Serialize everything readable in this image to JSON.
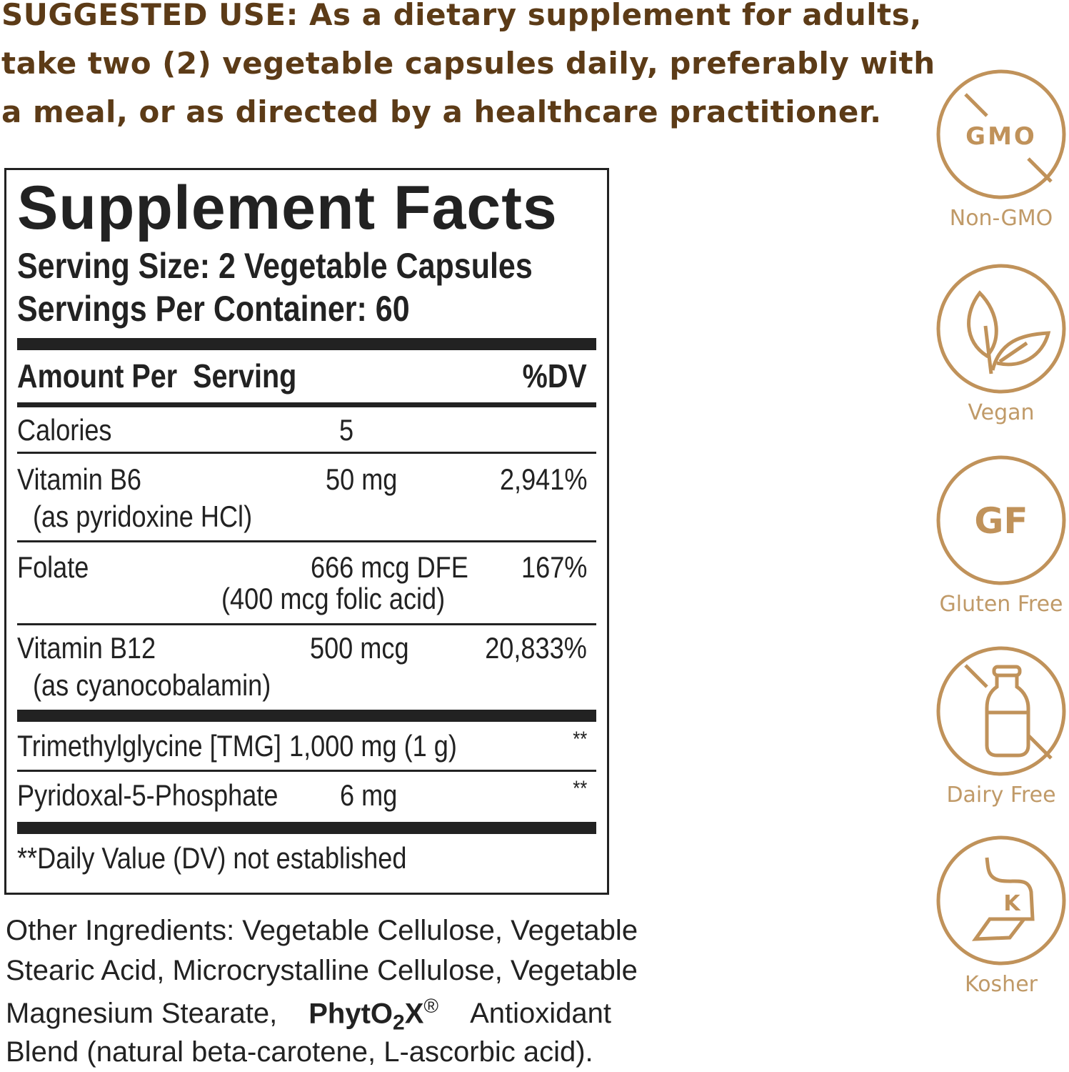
{
  "suggested_use": [
    "SUGGESTED USE: As a dietary supplement for adults,",
    "take two (2) vegetable capsules daily, preferably with",
    "a meal, or as directed by a healthcare practitioner."
  ],
  "facts": {
    "title": "Supplement Facts",
    "serving_size": "Serving Size: 2 Vegetable Capsules",
    "servings_per_container": "Servings Per Container: 60",
    "header_amount": "Amount Per  Serving",
    "header_dv": "%DV",
    "rows": [
      {
        "name": "Calories",
        "amount": "5",
        "dv": ""
      },
      {
        "name": "Vitamin B6",
        "sub": "(as pyridoxine HCl)",
        "amount": "50 mg",
        "dv": "2,941%"
      },
      {
        "name": "Folate",
        "amount": "666 mcg DFE",
        "amount_sub": "(400 mcg folic acid)",
        "dv": "167%"
      },
      {
        "name": "Vitamin B12",
        "sub": "(as cyanocobalamin)",
        "amount": "500 mcg",
        "dv": "20,833%"
      },
      {
        "name": "Trimethylglycine [TMG]",
        "amount": "1,000 mg (1 g)",
        "dv": "**"
      },
      {
        "name": "Pyridoxal-5-Phosphate",
        "amount": "6 mg",
        "dv": "**"
      }
    ],
    "footnote": "**Daily Value (DV) not established"
  },
  "other_ingredients": {
    "line1": "Other Ingredients: Vegetable Cellulose, Vegetable",
    "line2": "Stearic Acid, Microcrystalline Cellulose, Vegetable",
    "line3_a": "Magnesium Stearate,",
    "line3_brand": "PhytO",
    "line3_sub": "2",
    "line3_brand_end": "X",
    "line3_reg": "®",
    "line3_b": "Antioxidant",
    "line4": "Blend (natural beta-carotene, L-ascorbic acid)."
  },
  "badges": [
    {
      "icon": "no-gmo-icon",
      "glyph": "GMO",
      "label": "Non-GMO"
    },
    {
      "icon": "leaf-icon",
      "label": "Vegan"
    },
    {
      "icon": "gluten-free-icon",
      "glyph": "GF",
      "label": "Gluten Free"
    },
    {
      "icon": "no-milk-bottle-icon",
      "label": "Dairy Free"
    },
    {
      "icon": "kosher-icon",
      "glyph": "K",
      "label": "Kosher"
    }
  ],
  "colors": {
    "heading_brown": "#5c3b17",
    "badge_gold": "#c0925a",
    "ink": "#222222"
  }
}
